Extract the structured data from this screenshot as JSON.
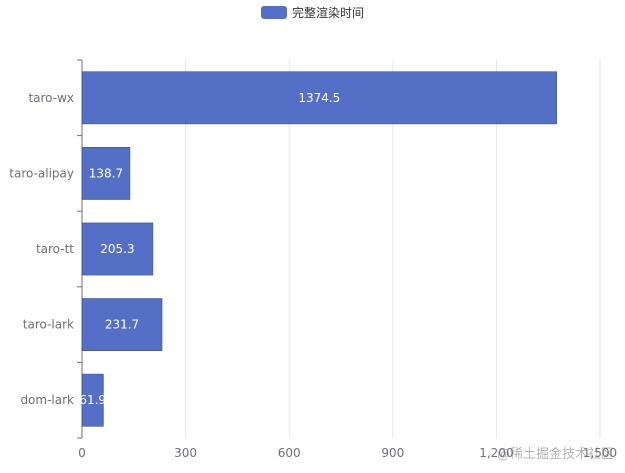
{
  "legend": {
    "label": "完整渲染时间"
  },
  "colors": {
    "bar": "#5470c6",
    "grid": "#e6e6e6",
    "axis": "#6e7079",
    "text": "#6e7079",
    "label": "#ffffff"
  },
  "watermark": "@稀土掘金技术社区",
  "chart_data": {
    "type": "bar",
    "orientation": "horizontal",
    "categories": [
      "dom-lark",
      "taro-lark",
      "taro-tt",
      "taro-alipay",
      "taro-wx"
    ],
    "series": [
      {
        "name": "完整渲染时间",
        "values": [
          61.9,
          231.7,
          205.3,
          138.7,
          1374.5
        ]
      }
    ],
    "data_labels": [
      "61.9",
      "231.7",
      "205.3",
      "138.7",
      "1374.5"
    ],
    "xlim": [
      0,
      1500
    ],
    "xticks": [
      0,
      300,
      600,
      900,
      1200,
      1500
    ],
    "xtick_labels": [
      "0",
      "300",
      "600",
      "900",
      "1,200",
      "1,500"
    ],
    "grid": true,
    "legend_position": "top-center"
  }
}
